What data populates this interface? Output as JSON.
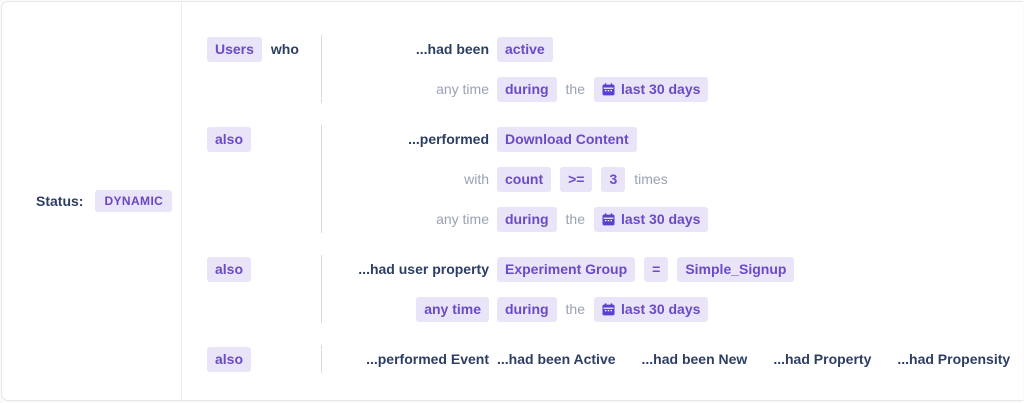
{
  "status_panel": {
    "label": "Status:",
    "value": "DYNAMIC"
  },
  "colors": {
    "chip_bg": "#e9e4f7",
    "chip_text": "#6a4bc6",
    "heading_text": "#2d3e63",
    "muted_text": "#99a1b3",
    "calendar_icon": "#5b3fd0",
    "divider": "#d9dde3"
  },
  "groups": [
    {
      "connector": {
        "chip": "Users",
        "chip_name": "segment-scope-chip",
        "text": "who"
      },
      "rows": [
        {
          "prefix": {
            "type": "bold",
            "text": "...had been",
            "name": "clause-had-been-label"
          },
          "items": [
            {
              "type": "chip",
              "text": "active",
              "name": "activity-state-chip"
            }
          ]
        },
        {
          "prefix": {
            "type": "muted",
            "text": "any time",
            "name": "any-time-label"
          },
          "items": [
            {
              "type": "chip",
              "text": "during",
              "name": "time-mode-chip"
            },
            {
              "type": "muted",
              "text": "the",
              "name": "the-label"
            },
            {
              "type": "chip",
              "text": "last 30 days",
              "icon": "calendar-icon",
              "name": "date-range-chip"
            }
          ]
        }
      ]
    },
    {
      "connector": {
        "chip": "also",
        "chip_name": "connector-also-chip"
      },
      "rows": [
        {
          "prefix": {
            "type": "bold",
            "text": "...performed",
            "name": "clause-performed-label"
          },
          "items": [
            {
              "type": "chip",
              "text": "Download Content",
              "name": "event-name-chip"
            }
          ]
        },
        {
          "prefix": {
            "type": "muted",
            "text": "with",
            "name": "with-label"
          },
          "items": [
            {
              "type": "chip",
              "text": "count",
              "name": "metric-chip"
            },
            {
              "type": "chip",
              "text": ">=",
              "name": "operator-chip"
            },
            {
              "type": "chip",
              "text": "3",
              "name": "count-value-chip"
            },
            {
              "type": "muted",
              "text": "times",
              "name": "times-label"
            }
          ]
        },
        {
          "prefix": {
            "type": "muted",
            "text": "any time",
            "name": "any-time-label"
          },
          "items": [
            {
              "type": "chip",
              "text": "during",
              "name": "time-mode-chip"
            },
            {
              "type": "muted",
              "text": "the",
              "name": "the-label"
            },
            {
              "type": "chip",
              "text": "last 30 days",
              "icon": "calendar-icon",
              "name": "date-range-chip"
            }
          ]
        }
      ]
    },
    {
      "connector": {
        "chip": "also",
        "chip_name": "connector-also-chip"
      },
      "rows": [
        {
          "prefix": {
            "type": "bold",
            "text": "...had user property",
            "name": "clause-user-property-label"
          },
          "items": [
            {
              "type": "chip",
              "text": "Experiment Group",
              "name": "property-name-chip"
            },
            {
              "type": "chip",
              "text": "=",
              "name": "operator-chip"
            },
            {
              "type": "chip",
              "text": "Simple_Signup",
              "name": "property-value-chip"
            }
          ]
        },
        {
          "prefix": {
            "type": "chip",
            "text": "any time",
            "name": "time-window-chip"
          },
          "items": [
            {
              "type": "chip",
              "text": "during",
              "name": "time-mode-chip"
            },
            {
              "type": "muted",
              "text": "the",
              "name": "the-label"
            },
            {
              "type": "chip",
              "text": "last 30 days",
              "icon": "calendar-icon",
              "name": "date-range-chip"
            }
          ]
        }
      ]
    },
    {
      "connector": {
        "chip": "also",
        "chip_name": "connector-also-chip"
      },
      "rows": [
        {
          "wide": true,
          "prefix": {
            "type": "option",
            "text": "...performed Event",
            "name": "option-performed-event"
          },
          "items": [
            {
              "type": "option",
              "text": "...had been Active",
              "name": "option-had-been-active"
            },
            {
              "type": "option",
              "text": "...had been New",
              "name": "option-had-been-new"
            },
            {
              "type": "option",
              "text": "...had Property",
              "name": "option-had-property"
            },
            {
              "type": "option",
              "text": "...had Propensity",
              "name": "option-had-propensity"
            }
          ]
        }
      ]
    }
  ]
}
